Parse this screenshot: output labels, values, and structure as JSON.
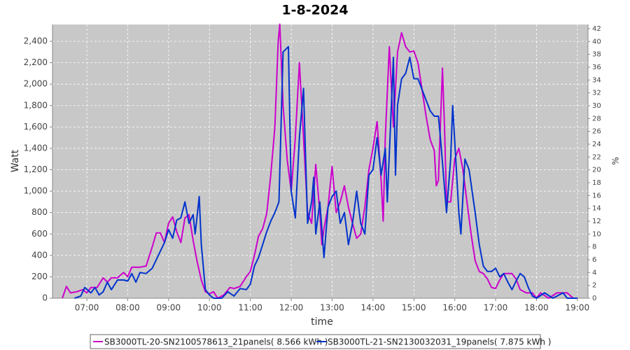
{
  "chart_data": {
    "type": "line",
    "title": "1-8-2024",
    "xlabel": "time",
    "ylabel": "Watt",
    "y2label": "%",
    "xlim": [
      6.16,
      19.26
    ],
    "xticks": [
      {
        "value": 7,
        "label": "07:00"
      },
      {
        "value": 8,
        "label": "08:00"
      },
      {
        "value": 9,
        "label": "09:00"
      },
      {
        "value": 10,
        "label": "10:00"
      },
      {
        "value": 11,
        "label": "11:00"
      },
      {
        "value": 12,
        "label": "12:00"
      },
      {
        "value": 13,
        "label": "13:00"
      },
      {
        "value": 14,
        "label": "14:00"
      },
      {
        "value": 15,
        "label": "15:00"
      },
      {
        "value": 16,
        "label": "16:00"
      },
      {
        "value": 17,
        "label": "17:00"
      },
      {
        "value": 18,
        "label": "18:00"
      },
      {
        "value": 19,
        "label": "19:00"
      }
    ],
    "ylim": [
      0,
      2557
    ],
    "yticks": [
      0,
      200,
      400,
      600,
      800,
      {
        "value": 1000,
        "label": "1,000"
      },
      {
        "value": 1200,
        "label": "1,200"
      },
      {
        "value": 1400,
        "label": "1,400"
      },
      {
        "value": 1600,
        "label": "1,600"
      },
      {
        "value": 1800,
        "label": "1,800"
      },
      {
        "value": 2000,
        "label": "2,000"
      },
      {
        "value": 2200,
        "label": "2,200"
      },
      {
        "value": 2400,
        "label": "2,400"
      }
    ],
    "y2lim": [
      0,
      42.65
    ],
    "y2ticks": [
      0,
      2,
      4,
      6,
      8,
      10,
      12,
      14,
      16,
      18,
      20,
      22,
      24,
      26,
      28,
      30,
      32,
      34,
      36,
      38,
      40,
      42
    ],
    "grid": true,
    "series": [
      {
        "name": "SB3000TL-20-SN2100578613_21panels( 8.566 kWh )",
        "color": "#cc00cc",
        "x": [
          6.4,
          6.5,
          6.6,
          6.75,
          6.9,
          7.0,
          7.1,
          7.25,
          7.4,
          7.5,
          7.6,
          7.75,
          7.9,
          8.0,
          8.1,
          8.3,
          8.45,
          8.6,
          8.7,
          8.8,
          8.9,
          9.0,
          9.1,
          9.2,
          9.3,
          9.4,
          9.5,
          9.6,
          9.7,
          9.8,
          9.9,
          10.0,
          10.1,
          10.2,
          10.35,
          10.5,
          10.6,
          10.75,
          10.9,
          11.0,
          11.1,
          11.2,
          11.3,
          11.4,
          11.5,
          11.6,
          11.68,
          11.72,
          11.8,
          11.9,
          12.0,
          12.1,
          12.2,
          12.3,
          12.4,
          12.5,
          12.6,
          12.7,
          12.75,
          12.8,
          12.9,
          13.0,
          13.1,
          13.2,
          13.3,
          13.4,
          13.5,
          13.6,
          13.7,
          13.8,
          13.9,
          14.0,
          14.1,
          14.2,
          14.25,
          14.3,
          14.4,
          14.5,
          14.6,
          14.7,
          14.8,
          14.9,
          15.0,
          15.1,
          15.2,
          15.3,
          15.4,
          15.5,
          15.55,
          15.6,
          15.7,
          15.75,
          15.8,
          15.9,
          16.0,
          16.1,
          16.2,
          16.3,
          16.4,
          16.5,
          16.6,
          16.7,
          16.8,
          16.9,
          17.0,
          17.1,
          17.2,
          17.4,
          17.5,
          17.6,
          17.75,
          17.9,
          18.0,
          18.1,
          18.3,
          18.5,
          18.75,
          18.9,
          19.0
        ],
        "values": [
          0,
          110,
          50,
          60,
          80,
          50,
          100,
          100,
          190,
          150,
          190,
          190,
          240,
          200,
          290,
          290,
          300,
          480,
          610,
          610,
          520,
          700,
          760,
          620,
          520,
          750,
          780,
          540,
          340,
          170,
          60,
          40,
          60,
          0,
          30,
          100,
          90,
          110,
          200,
          250,
          400,
          580,
          650,
          790,
          1150,
          1600,
          2400,
          2560,
          1800,
          1300,
          1000,
          1500,
          2200,
          1500,
          800,
          700,
          1250,
          800,
          500,
          650,
          850,
          1230,
          800,
          900,
          1050,
          850,
          700,
          560,
          600,
          850,
          1200,
          1400,
          1650,
          1100,
          720,
          1500,
          2350,
          1600,
          2300,
          2480,
          2350,
          2300,
          2310,
          2200,
          1950,
          1700,
          1480,
          1380,
          1050,
          1100,
          2150,
          1600,
          900,
          900,
          1300,
          1400,
          1200,
          900,
          600,
          350,
          250,
          230,
          180,
          100,
          90,
          170,
          230,
          230,
          180,
          80,
          50,
          50,
          0,
          50,
          0,
          50,
          50,
          0,
          0
        ]
      },
      {
        "name": "SB3000TL-21-SN2130032031_19panels( 7.875 kWh )",
        "color": "#0033cc",
        "x": [
          6.7,
          6.85,
          6.95,
          7.1,
          7.2,
          7.3,
          7.4,
          7.5,
          7.6,
          7.75,
          7.9,
          8.0,
          8.1,
          8.2,
          8.3,
          8.45,
          8.6,
          8.75,
          8.9,
          9.0,
          9.1,
          9.2,
          9.3,
          9.4,
          9.5,
          9.6,
          9.65,
          9.75,
          9.8,
          9.9,
          10.0,
          10.1,
          10.3,
          10.45,
          10.6,
          10.75,
          10.9,
          11.0,
          11.1,
          11.2,
          11.3,
          11.4,
          11.5,
          11.6,
          11.7,
          11.8,
          11.93,
          12.0,
          12.1,
          12.2,
          12.3,
          12.4,
          12.5,
          12.55,
          12.6,
          12.7,
          12.8,
          12.9,
          13.0,
          13.1,
          13.2,
          13.3,
          13.4,
          13.5,
          13.6,
          13.7,
          13.8,
          13.9,
          14.0,
          14.1,
          14.2,
          14.3,
          14.35,
          14.5,
          14.55,
          14.6,
          14.7,
          14.8,
          14.9,
          15.0,
          15.1,
          15.2,
          15.3,
          15.4,
          15.5,
          15.6,
          15.65,
          15.8,
          15.9,
          15.95,
          16.1,
          16.15,
          16.25,
          16.35,
          16.5,
          16.6,
          16.7,
          16.8,
          16.9,
          17.0,
          17.1,
          17.2,
          17.3,
          17.4,
          17.5,
          17.6,
          17.7,
          17.8,
          17.9,
          18.0,
          18.2,
          18.4,
          18.65,
          18.75,
          19.0
        ],
        "values": [
          0,
          20,
          100,
          50,
          100,
          30,
          60,
          150,
          80,
          170,
          170,
          160,
          230,
          150,
          240,
          230,
          280,
          400,
          520,
          640,
          560,
          730,
          750,
          900,
          700,
          780,
          600,
          950,
          500,
          80,
          30,
          0,
          0,
          60,
          20,
          90,
          80,
          130,
          300,
          380,
          500,
          620,
          720,
          800,
          900,
          2300,
          2350,
          1000,
          750,
          1500,
          1960,
          700,
          900,
          1130,
          600,
          900,
          380,
          850,
          950,
          1000,
          700,
          800,
          500,
          700,
          1000,
          700,
          600,
          1150,
          1200,
          1500,
          1150,
          1400,
          900,
          2250,
          1150,
          1800,
          2050,
          2100,
          2250,
          2050,
          2050,
          1950,
          1850,
          1750,
          1700,
          1700,
          1500,
          800,
          1300,
          1800,
          800,
          600,
          1300,
          1200,
          800,
          500,
          300,
          250,
          250,
          280,
          200,
          230,
          150,
          80,
          160,
          230,
          200,
          100,
          20,
          0,
          50,
          0,
          50,
          0,
          0
        ]
      }
    ]
  }
}
